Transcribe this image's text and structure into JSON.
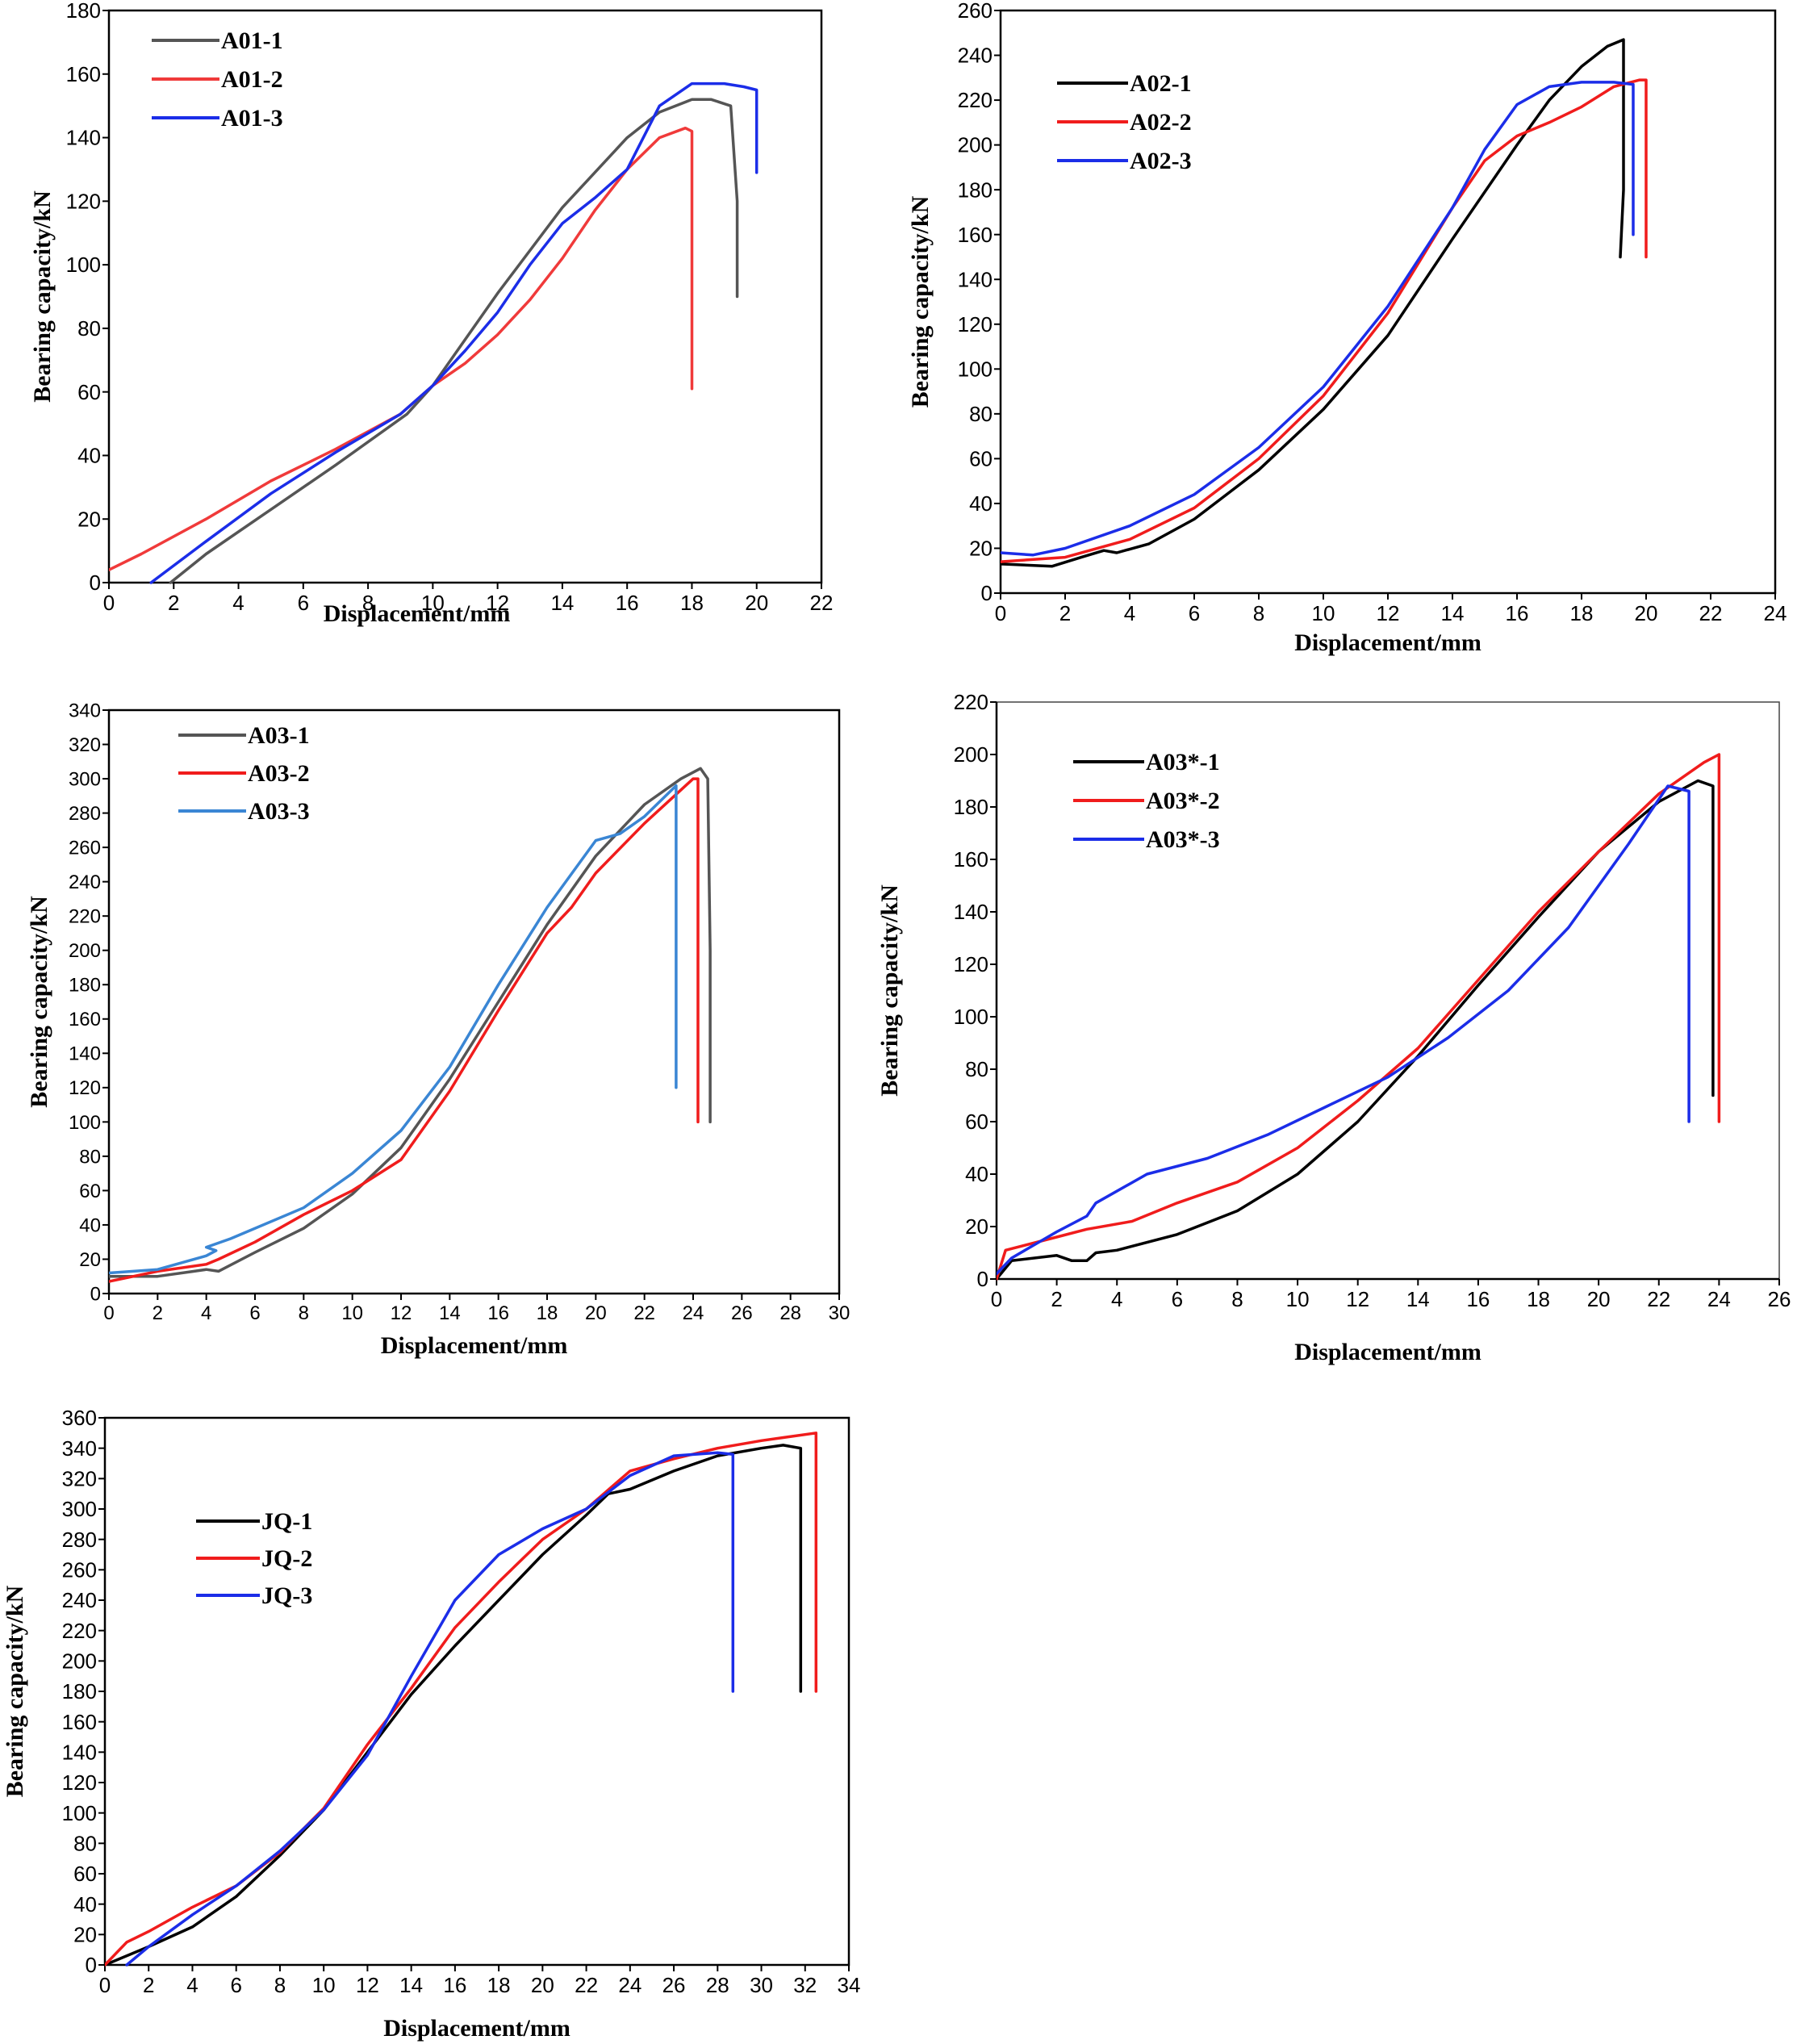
{
  "chart_data": [
    {
      "id": "A01",
      "type": "line",
      "xlabel": "Displacement/mm",
      "ylabel": "Bearing capacity/kN",
      "xlim": [
        0,
        22
      ],
      "ylim": [
        0,
        180
      ],
      "xticks": [
        0,
        2,
        4,
        6,
        8,
        10,
        12,
        14,
        16,
        18,
        20,
        22
      ],
      "yticks": [
        0,
        20,
        40,
        60,
        80,
        100,
        120,
        140,
        160,
        180
      ],
      "legend_position": "top-left",
      "series": [
        {
          "name": "A01-1",
          "color": "#555555",
          "x": [
            1.9,
            3,
            5,
            7,
            9.2,
            10,
            12,
            14,
            16,
            17,
            18,
            18.6,
            19.2,
            19.4,
            19.4
          ],
          "y": [
            0,
            9,
            23,
            37,
            53,
            62,
            91,
            118,
            140,
            148,
            152,
            152,
            150,
            120,
            90
          ]
        },
        {
          "name": "A01-2",
          "color": "#f03a3a",
          "x": [
            0,
            1,
            3,
            5,
            7,
            9,
            10,
            11,
            12,
            13,
            14,
            15,
            16,
            17,
            17.8,
            18.0,
            18.0
          ],
          "y": [
            4,
            9,
            20,
            32,
            42,
            53,
            62,
            69,
            78,
            89,
            102,
            117,
            130,
            140,
            143,
            142,
            61
          ]
        },
        {
          "name": "A01-3",
          "color": "#1b2de8",
          "x": [
            1.3,
            3,
            5,
            7,
            9,
            10,
            11,
            12,
            13,
            14,
            15,
            16,
            17,
            18,
            19,
            19.6,
            20,
            20,
            20
          ],
          "y": [
            0,
            13,
            28,
            41,
            53,
            62,
            73,
            85,
            100,
            113,
            121,
            130,
            150,
            157,
            157,
            156,
            155,
            140,
            129
          ]
        }
      ]
    },
    {
      "id": "A02",
      "type": "line",
      "xlabel": "Displacement/mm",
      "ylabel": "Bearing capacity/kN",
      "xlim": [
        0,
        24
      ],
      "ylim": [
        0,
        260
      ],
      "xticks": [
        0,
        2,
        4,
        6,
        8,
        10,
        12,
        14,
        16,
        18,
        20,
        22,
        24
      ],
      "yticks": [
        0,
        20,
        40,
        60,
        80,
        100,
        120,
        140,
        160,
        180,
        200,
        220,
        240,
        260
      ],
      "legend_position": "top-left",
      "series": [
        {
          "name": "A02-1",
          "color": "#000000",
          "x": [
            0,
            1.6,
            2.5,
            3.2,
            3.6,
            4.6,
            6,
            8,
            10,
            12,
            14,
            16,
            17,
            18,
            18.8,
            19.3,
            19.3,
            19.2
          ],
          "y": [
            13,
            12,
            16,
            19,
            18,
            22,
            33,
            55,
            82,
            115,
            158,
            200,
            220,
            235,
            244,
            247,
            180,
            150
          ]
        },
        {
          "name": "A02-2",
          "color": "#f01c1c",
          "x": [
            0,
            2,
            4,
            6,
            8,
            10,
            12,
            14,
            15,
            16,
            17,
            18,
            19,
            19.8,
            20,
            20,
            20
          ],
          "y": [
            14,
            16,
            24,
            38,
            60,
            88,
            125,
            172,
            193,
            204,
            210,
            217,
            226,
            229,
            229,
            200,
            150
          ]
        },
        {
          "name": "A02-3",
          "color": "#1b2de8",
          "x": [
            0,
            1,
            2,
            4,
            6,
            8,
            10,
            12,
            14,
            15,
            16,
            17,
            18,
            19,
            19.6,
            19.6
          ],
          "y": [
            18,
            17,
            20,
            30,
            44,
            65,
            92,
            128,
            172,
            198,
            218,
            226,
            228,
            228,
            227,
            160
          ]
        }
      ]
    },
    {
      "id": "A03",
      "type": "line",
      "xlabel": "Displacement/mm",
      "ylabel": "Bearing capacity/kN",
      "xlim": [
        0,
        30
      ],
      "ylim": [
        0,
        340
      ],
      "xticks": [
        0,
        2,
        4,
        6,
        8,
        10,
        12,
        14,
        16,
        18,
        20,
        22,
        24,
        26,
        28,
        30
      ],
      "yticks": [
        0,
        20,
        40,
        60,
        80,
        100,
        120,
        140,
        160,
        180,
        200,
        220,
        240,
        260,
        280,
        300,
        320,
        340
      ],
      "legend_position": "top-left",
      "series": [
        {
          "name": "A03-1",
          "color": "#555555",
          "x": [
            0,
            2,
            3.5,
            4,
            4.5,
            6,
            8,
            10,
            12,
            14,
            16,
            18,
            20,
            22,
            23.5,
            24.3,
            24.6,
            24.7,
            24.7
          ],
          "y": [
            10,
            10,
            13,
            14,
            13,
            24,
            38,
            58,
            85,
            125,
            170,
            215,
            255,
            285,
            300,
            306,
            300,
            200,
            100
          ]
        },
        {
          "name": "A03-2",
          "color": "#f01c1c",
          "x": [
            0,
            2,
            4,
            4.5,
            6,
            8,
            10,
            12,
            14,
            16,
            18,
            19,
            20,
            22,
            24,
            24.2,
            24.2
          ],
          "y": [
            7,
            13,
            17,
            20,
            30,
            46,
            60,
            78,
            118,
            165,
            210,
            225,
            245,
            274,
            300,
            300,
            100
          ]
        },
        {
          "name": "A03-3",
          "color": "#3a86d4",
          "x": [
            0,
            2,
            4,
            4.4,
            4.0,
            5,
            8,
            10,
            12,
            14,
            16,
            18,
            20,
            21,
            22,
            23.3,
            23.3
          ],
          "y": [
            12,
            14,
            22,
            25,
            27,
            32,
            50,
            70,
            95,
            132,
            180,
            225,
            264,
            268,
            278,
            296,
            120
          ]
        }
      ]
    },
    {
      "id": "A03star",
      "type": "line",
      "xlabel": "Displacement/mm",
      "ylabel": "Bearing capacity/kN",
      "xlim": [
        0,
        26
      ],
      "ylim": [
        0,
        220
      ],
      "xticks": [
        0,
        2,
        4,
        6,
        8,
        10,
        12,
        14,
        16,
        18,
        20,
        22,
        24,
        26
      ],
      "yticks": [
        0,
        20,
        40,
        60,
        80,
        100,
        120,
        140,
        160,
        180,
        200,
        220
      ],
      "legend_position": "top-left",
      "series": [
        {
          "name": "A03*-1",
          "color": "#000000",
          "x": [
            0,
            0.5,
            2,
            2.5,
            3,
            3.3,
            4,
            6,
            8,
            10,
            12,
            14,
            16,
            18,
            20,
            22,
            23.3,
            23.8,
            23.8
          ],
          "y": [
            0,
            7,
            9,
            7,
            7,
            10,
            11,
            17,
            26,
            40,
            60,
            85,
            112,
            138,
            163,
            182,
            190,
            188,
            70
          ]
        },
        {
          "name": "A03*-2",
          "color": "#f01c1c",
          "x": [
            0,
            0.3,
            2,
            3,
            4.5,
            6,
            8,
            10,
            12,
            14,
            16,
            18,
            20,
            22,
            23.5,
            24,
            24
          ],
          "y": [
            0,
            11,
            16,
            19,
            22,
            29,
            37,
            50,
            68,
            88,
            114,
            140,
            163,
            185,
            197,
            200,
            60
          ]
        },
        {
          "name": "A03*-3",
          "color": "#1b2de8",
          "x": [
            0,
            0.5,
            2,
            3,
            3.3,
            5,
            7,
            9,
            11,
            13,
            15,
            17,
            19,
            21,
            22.3,
            23,
            23
          ],
          "y": [
            2,
            8,
            18,
            24,
            29,
            40,
            46,
            55,
            66,
            77,
            92,
            110,
            134,
            166,
            188,
            186,
            60
          ]
        }
      ]
    },
    {
      "id": "JQ",
      "type": "line",
      "xlabel": "Displacement/mm",
      "ylabel": "Bearing capacity/kN",
      "xlim": [
        0,
        34
      ],
      "ylim": [
        0,
        360
      ],
      "xticks": [
        0,
        2,
        4,
        6,
        8,
        10,
        12,
        14,
        16,
        18,
        20,
        22,
        24,
        26,
        28,
        30,
        32,
        34
      ],
      "yticks": [
        0,
        20,
        40,
        60,
        80,
        100,
        120,
        140,
        160,
        180,
        200,
        220,
        240,
        260,
        280,
        300,
        320,
        340,
        360
      ],
      "legend_position": "top-left",
      "series": [
        {
          "name": "JQ-1",
          "color": "#000000",
          "x": [
            0,
            2,
            4,
            6,
            8,
            10,
            12,
            14,
            16,
            18,
            20,
            22,
            23,
            24,
            26,
            28,
            30,
            31,
            31.8,
            31.8
          ],
          "y": [
            0,
            12,
            25,
            45,
            72,
            102,
            140,
            178,
            210,
            240,
            270,
            296,
            310,
            313,
            325,
            335,
            340,
            342,
            340,
            180
          ]
        },
        {
          "name": "JQ-2",
          "color": "#f01c1c",
          "x": [
            0,
            1,
            2,
            4,
            6,
            8,
            10,
            12,
            14,
            16,
            18,
            20,
            22,
            24,
            26,
            28,
            30,
            31,
            32.5,
            32.5
          ],
          "y": [
            0,
            15,
            22,
            38,
            52,
            74,
            103,
            145,
            182,
            222,
            252,
            280,
            300,
            325,
            333,
            340,
            345,
            347,
            350,
            180
          ]
        },
        {
          "name": "JQ-3",
          "color": "#1b2de8",
          "x": [
            1,
            2,
            4,
            6,
            8,
            10,
            12,
            14,
            16,
            18,
            20,
            22,
            24,
            26,
            28,
            28.7,
            28.7
          ],
          "y": [
            0,
            12,
            33,
            52,
            75,
            102,
            138,
            190,
            240,
            270,
            287,
            300,
            322,
            335,
            337,
            336,
            180
          ]
        }
      ]
    }
  ]
}
